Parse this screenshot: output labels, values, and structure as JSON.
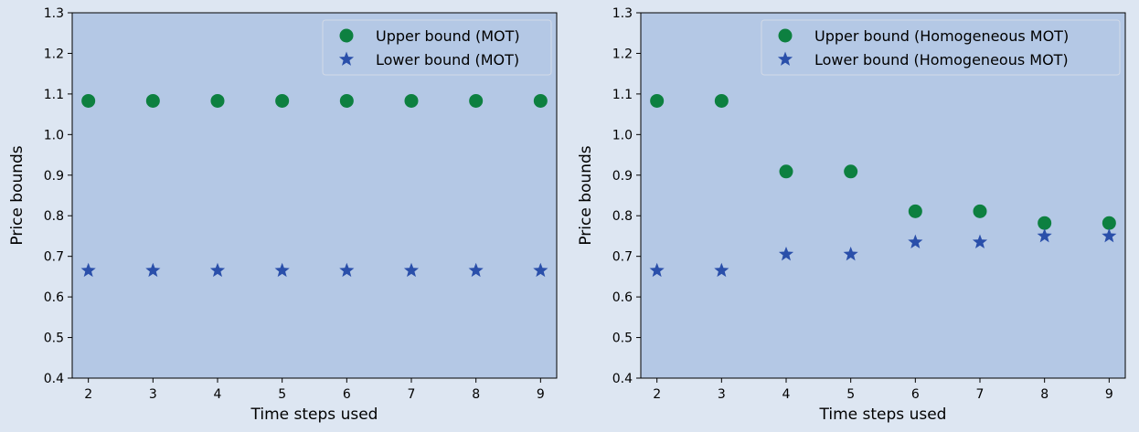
{
  "figure": {
    "background": "#dde6f2",
    "plot_background": "#b4c8e5"
  },
  "chart_data": [
    {
      "type": "scatter",
      "xlabel": "Time steps used",
      "ylabel": "Price bounds",
      "x": [
        2,
        3,
        4,
        5,
        6,
        7,
        8,
        9
      ],
      "xticks": [
        "2",
        "3",
        "4",
        "5",
        "6",
        "7",
        "8",
        "9"
      ],
      "xlim": [
        1.75,
        9.25
      ],
      "ylim": [
        0.4,
        1.3
      ],
      "yticks": [
        "0.4",
        "0.5",
        "0.6",
        "0.7",
        "0.8",
        "0.9",
        "1.0",
        "1.1",
        "1.2",
        "1.3"
      ],
      "grid": false,
      "legend_position": "top-right",
      "series": [
        {
          "name": "Upper bound (MOT)",
          "marker": "circle",
          "color": "#0d8040",
          "values": [
            1.083,
            1.083,
            1.083,
            1.083,
            1.083,
            1.083,
            1.083,
            1.083
          ]
        },
        {
          "name": "Lower bound (MOT)",
          "marker": "star",
          "color": "#2a4faa",
          "values": [
            0.665,
            0.665,
            0.665,
            0.665,
            0.665,
            0.665,
            0.665,
            0.665
          ]
        }
      ]
    },
    {
      "type": "scatter",
      "xlabel": "Time steps used",
      "ylabel": "Price bounds",
      "x": [
        2,
        3,
        4,
        5,
        6,
        7,
        8,
        9
      ],
      "xticks": [
        "2",
        "3",
        "4",
        "5",
        "6",
        "7",
        "8",
        "9"
      ],
      "xlim": [
        1.75,
        9.25
      ],
      "ylim": [
        0.4,
        1.3
      ],
      "yticks": [
        "0.4",
        "0.5",
        "0.6",
        "0.7",
        "0.8",
        "0.9",
        "1.0",
        "1.1",
        "1.2",
        "1.3"
      ],
      "grid": false,
      "legend_position": "top-right",
      "series": [
        {
          "name": "Upper bound (Homogeneous MOT)",
          "marker": "circle",
          "color": "#0d8040",
          "values": [
            1.083,
            1.083,
            0.909,
            0.909,
            0.811,
            0.811,
            0.782,
            0.782
          ]
        },
        {
          "name": "Lower bound (Homogeneous MOT)",
          "marker": "star",
          "color": "#2a4faa",
          "values": [
            0.665,
            0.665,
            0.705,
            0.705,
            0.735,
            0.735,
            0.75,
            0.75
          ]
        }
      ]
    }
  ]
}
